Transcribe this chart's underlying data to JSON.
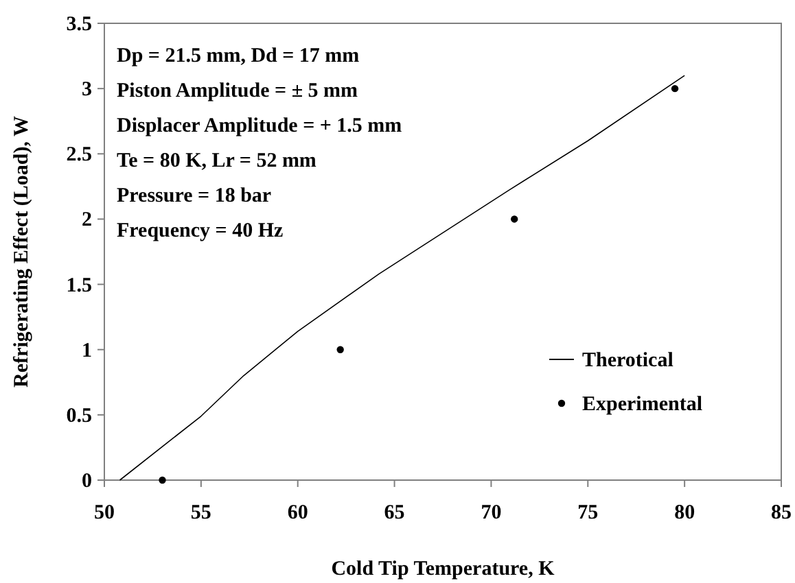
{
  "chart_data": {
    "type": "line",
    "xlabel": "Cold Tip Temperature, K",
    "ylabel": "Refrigerating Effect (Load), W",
    "xlim": [
      50,
      85
    ],
    "xticks": [
      50,
      55,
      60,
      65,
      70,
      75,
      80,
      85
    ],
    "ylim": [
      0,
      3.5
    ],
    "yticks": [
      0,
      0.5,
      1,
      1.5,
      2,
      2.5,
      3,
      3.5
    ],
    "grid": false,
    "legend": "right",
    "annotations": [
      "Dp = 21.5 mm, Dd = 17 mm",
      "Piston Amplitude = ± 5 mm",
      "Displacer Amplitude = + 1.5 mm",
      "Te = 80 K, Lr = 52 mm",
      "Pressure = 18 bar",
      "Frequency = 40 Hz"
    ],
    "series": [
      {
        "name": "Therotical",
        "color": "#000000",
        "marker": "none",
        "x": [
          50.8,
          55,
          57.2,
          60,
          64.2,
          70.9,
          75,
          80
        ],
        "values": [
          0,
          0.49,
          0.8,
          1.14,
          1.58,
          2.22,
          2.6,
          3.1
        ]
      },
      {
        "name": "Experimental",
        "type": "scatter",
        "color": "#000000",
        "marker": "circle",
        "x": [
          53,
          62.2,
          71.2,
          79.5
        ],
        "values": [
          0,
          1,
          2,
          3
        ]
      }
    ]
  }
}
